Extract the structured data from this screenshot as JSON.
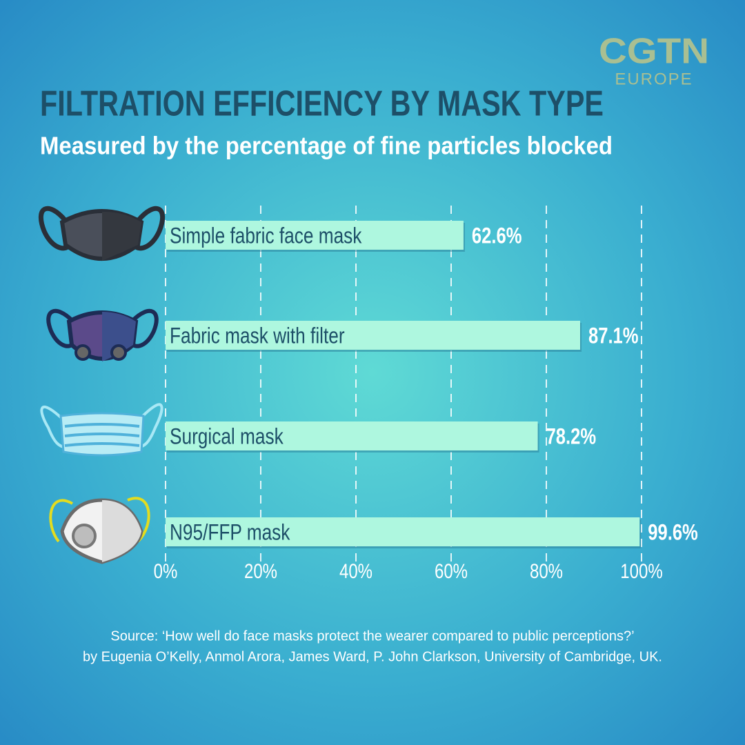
{
  "logo": {
    "name": "CGTN",
    "region": "EUROPE"
  },
  "chart_data": {
    "type": "hbar",
    "title": "FILTRATION EFFICIENCY BY MASK TYPE",
    "subtitle": "Measured by the percentage of fine particles blocked",
    "categories": [
      "Simple fabric face mask",
      "Fabric mask with filter",
      "Surgical mask",
      "N95/FFP mask"
    ],
    "values": [
      62.6,
      87.1,
      78.2,
      99.6
    ],
    "value_labels": [
      "62.6%",
      "87.1%",
      "78.2%",
      "99.6%"
    ],
    "color": "#aef7df",
    "xlim": [
      0,
      100
    ],
    "xticks": [
      {
        "value": 0,
        "label": "0%"
      },
      {
        "value": 20,
        "label": "20%"
      },
      {
        "value": 40,
        "label": "40%"
      },
      {
        "value": 60,
        "label": "60%"
      },
      {
        "value": 80,
        "label": "80%"
      },
      {
        "value": 100,
        "label": "100%"
      }
    ],
    "grid": true,
    "source": [
      "Source: ‘How well do face masks protect the wearer compared to public perceptions?’",
      "by Eugenia O’Kelly, Anmol Arora, James Ward, P. John Clarkson, University of Cambridge, UK."
    ]
  }
}
